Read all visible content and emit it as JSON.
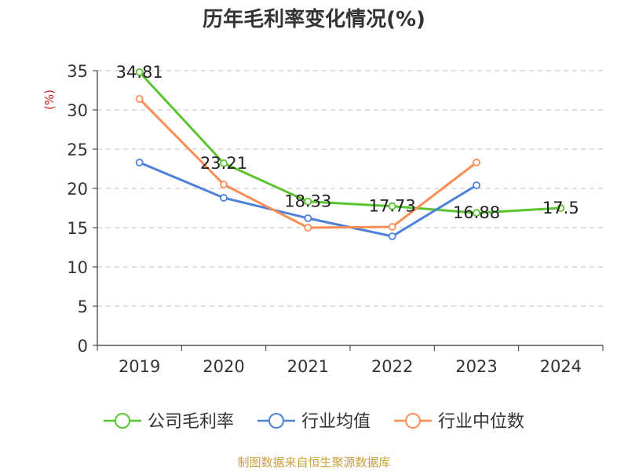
{
  "chart_data": {
    "type": "line",
    "title": "历年毛利率变化情况(%)",
    "ylabel": "(%)",
    "xlabel": "",
    "categories": [
      "2019",
      "2020",
      "2021",
      "2022",
      "2023",
      "2024"
    ],
    "ylim": [
      0,
      35
    ],
    "yticks": [
      0,
      5,
      10,
      15,
      20,
      25,
      30,
      35
    ],
    "grid": true,
    "legend_position": "bottom",
    "series": [
      {
        "name": "公司毛利率",
        "color": "#5cc430",
        "values": [
          34.81,
          23.21,
          18.33,
          17.73,
          16.88,
          17.5
        ],
        "labels": [
          "34.81",
          "23.21",
          "18.33",
          "17.73",
          "16.88",
          "17.5"
        ]
      },
      {
        "name": "行业均值",
        "color": "#4f81da",
        "values": [
          23.3,
          18.8,
          16.2,
          13.9,
          20.4,
          null
        ]
      },
      {
        "name": "行业中位数",
        "color": "#f98d56",
        "values": [
          31.4,
          20.5,
          15.0,
          15.1,
          23.3,
          null
        ]
      }
    ],
    "source": "制图数据来自恒生聚源数据库"
  }
}
